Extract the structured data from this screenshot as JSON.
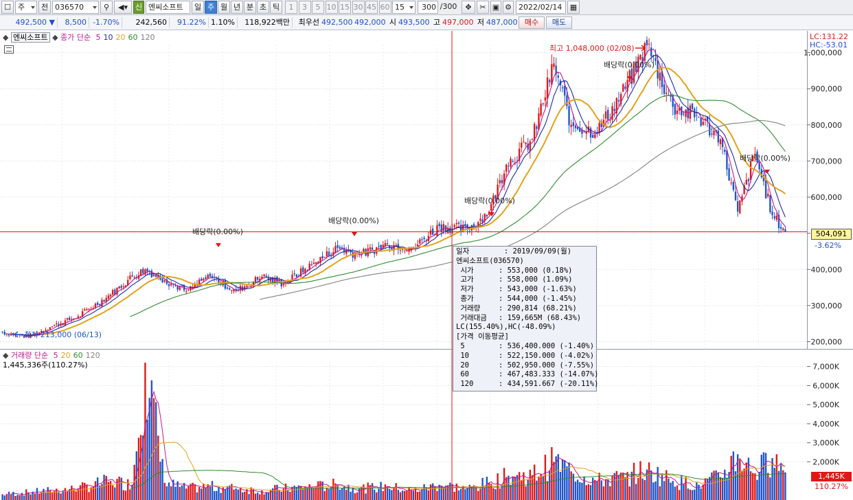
{
  "toolbar": {
    "market": "주",
    "prefix": "전",
    "code": "036570",
    "new_badge": "신",
    "stock_name": "엔씨소프트",
    "periods": [
      "일",
      "주",
      "월",
      "년",
      "분",
      "초",
      "틱"
    ],
    "active_period": "주",
    "intervals": [
      "1",
      "3",
      "5",
      "10",
      "15",
      "30",
      "45",
      "60"
    ],
    "interval_input": "15",
    "count": "300",
    "count_total": "/300",
    "date": "2022/02/14"
  },
  "quote": {
    "price": "492,500",
    "change": "8,500",
    "change_pct": "-1.70%",
    "volume": "242,560",
    "volume_ratio": "91.22%",
    "turnover": "1.10%",
    "amount": "118,922백만",
    "best_label": "최우선",
    "ask": "492,500",
    "bid": "492,000",
    "open_label": "시",
    "open": "493,500",
    "high_label": "고",
    "high": "497,000",
    "low_label": "저",
    "low": "487,000",
    "buy_button": "매수",
    "sell_button": "매도"
  },
  "price_legend": {
    "name": "엔씨소프트",
    "ma_label": "종가 단순",
    "periods": [
      "5",
      "10",
      "20",
      "60",
      "120"
    ],
    "colors": [
      "#c0168f",
      "#1a2d9e",
      "#e2a21a",
      "#2e8b2e",
      "#808080"
    ]
  },
  "volume_legend": {
    "name": "거래량",
    "ma_label": "단순",
    "periods": [
      "5",
      "20",
      "60",
      "120"
    ],
    "current": "1,445,336주(110.27%)"
  },
  "price_axis": {
    "lc": "LC:131.22",
    "hc": "HC:-53.01",
    "ticks": [
      "1,000,000",
      "900,000",
      "800,000",
      "700,000",
      "600,000",
      "500,000",
      "400,000",
      "300,000",
      "200,000"
    ],
    "current_tag": "504,091",
    "current_pct": "-3.62%"
  },
  "volume_axis": {
    "ticks": [
      "7,000K",
      "6,000K",
      "5,000K",
      "4,000K",
      "3,000K",
      "2,000K"
    ],
    "current_tag": "1,445K",
    "current_pct": "110.27%"
  },
  "annotations": {
    "high": "최고 1,048,000 (02/08)",
    "low": "최저 213,000 (06/13)",
    "dividend": "배당락(0.00%)"
  },
  "tooltip": {
    "date_label": "일자",
    "date": ": 2019/09/09(월)",
    "stock": "엔씨소프트(036570)",
    "rows": [
      {
        "k": "시가",
        "v": ": 553,000 (0.18%)"
      },
      {
        "k": "고가",
        "v": ": 558,000 (1.09%)"
      },
      {
        "k": "저가",
        "v": ": 543,000 (-1.63%)"
      },
      {
        "k": "종가",
        "v": ": 544,000 (-1.45%)"
      },
      {
        "k": "거래량",
        "v": ": 290,814 (68.21%)"
      },
      {
        "k": "거래대금",
        "v": ": 159,665M (68.43%)"
      }
    ],
    "lc_hc": "LC(155.40%),HC(-48.09%)",
    "ma_header": "[가격 이동평균]",
    "ma_rows": [
      {
        "k": "5",
        "v": ": 536,400.000 (-1.40%)"
      },
      {
        "k": "10",
        "v": ": 522,150.000 (-4.02%)"
      },
      {
        "k": "20",
        "v": ": 502,950.000 (-7.55%)"
      },
      {
        "k": "60",
        "v": ": 467,483.333 (-14.07%)"
      },
      {
        "k": "120",
        "v": ": 434,591.667 (-20.11%)"
      }
    ]
  },
  "colors": {
    "up": "#e01818",
    "down": "#1f55c9",
    "ma5": "#c0168f",
    "ma10": "#1a2d9e",
    "ma20": "#e2a21a",
    "ma60": "#2e8b2e",
    "ma120": "#808080"
  },
  "chart_data": {
    "type": "candlestick",
    "period": "weekly",
    "price_range": [
      180000,
      1060000
    ],
    "volume_range": [
      0,
      7600000
    ],
    "extremes": {
      "high": 1048000,
      "low": 213000
    },
    "current_price": 504091,
    "anchors": [
      [
        0,
        226000,
        0.3
      ],
      [
        12,
        213000,
        0.4
      ],
      [
        22,
        240000,
        0.5
      ],
      [
        35,
        270000,
        0.6
      ],
      [
        50,
        330000,
        1.0
      ],
      [
        60,
        380000,
        0.8
      ],
      [
        66,
        400000,
        7.2
      ],
      [
        75,
        370000,
        0.9
      ],
      [
        85,
        340000,
        0.6
      ],
      [
        96,
        380000,
        0.7
      ],
      [
        108,
        340000,
        0.6
      ],
      [
        120,
        380000,
        0.5
      ],
      [
        130,
        360000,
        0.6
      ],
      [
        145,
        420000,
        0.7
      ],
      [
        155,
        460000,
        0.8
      ],
      [
        165,
        440000,
        0.6
      ],
      [
        178,
        470000,
        0.7
      ],
      [
        190,
        460000,
        0.5
      ],
      [
        202,
        520000,
        0.8
      ],
      [
        215,
        510000,
        0.6
      ],
      [
        225,
        560000,
        0.9
      ],
      [
        233,
        690000,
        1.2
      ],
      [
        245,
        760000,
        1.3
      ],
      [
        255,
        970000,
        2.0
      ],
      [
        263,
        800000,
        1.5
      ],
      [
        275,
        780000,
        1.0
      ],
      [
        288,
        900000,
        1.2
      ],
      [
        298,
        1020000,
        1.6
      ],
      [
        310,
        850000,
        1.0
      ],
      [
        322,
        820000,
        0.8
      ],
      [
        332,
        760000,
        1.2
      ],
      [
        340,
        560000,
        2.4
      ],
      [
        348,
        720000,
        1.4
      ],
      [
        356,
        550000,
        2.2
      ],
      [
        362,
        504000,
        1.45
      ]
    ]
  }
}
